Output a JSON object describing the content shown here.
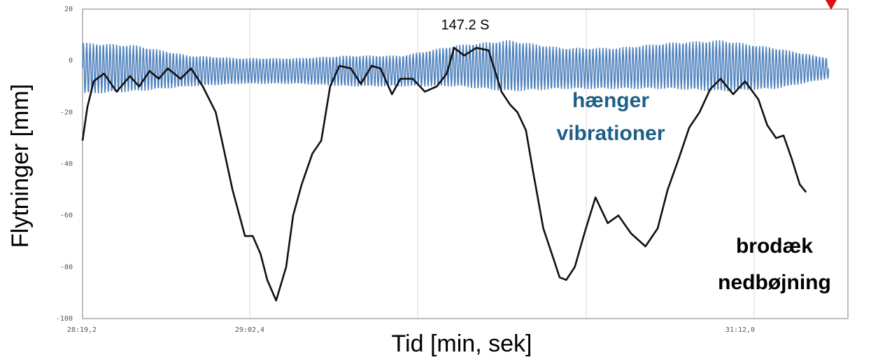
{
  "chart_data": {
    "type": "line",
    "title": "",
    "xlabel": "Tid [min, sek]",
    "ylabel": "Flytninger [mm]",
    "x_tick_labels": [
      "28:19,2",
      "29:02,4",
      "31:12,0"
    ],
    "y_ticks": [
      20,
      0,
      -20,
      -40,
      -60,
      -80,
      -100
    ],
    "ylim": [
      -100,
      20
    ],
    "xlim_seconds": [
      1699.2,
      1906.0
    ],
    "grid": "vertical",
    "annotation": "147.2 S",
    "series": [
      {
        "name": "hænger vibrationer",
        "color": "#4f81bd",
        "label_color": "#1f5f86",
        "x": [
          1699.2,
          1713.6,
          1728.0,
          1742.4,
          1756.8,
          1771.2,
          1785.6,
          1800.0,
          1814.4,
          1828.8,
          1843.2,
          1857.6,
          1872.0,
          1886.4,
          1900.8
        ],
        "center": [
          -3,
          -3,
          -4,
          -4,
          -4,
          -4,
          -4,
          -2,
          -2,
          -3,
          -3,
          -2,
          -2,
          -3,
          -3
        ],
        "amplitude": [
          10,
          9,
          6,
          5,
          5,
          6,
          6,
          8,
          10,
          8,
          8,
          9,
          10,
          8,
          4
        ],
        "period_s": 0.9
      },
      {
        "name": "brodæk nedbøjning",
        "color": "#111111",
        "label_color": "#000000",
        "x": [
          1699.2,
          1700.5,
          1702.2,
          1705.0,
          1708.4,
          1712.0,
          1714.5,
          1717.3,
          1719.8,
          1722.2,
          1725.7,
          1728.5,
          1731.7,
          1735.2,
          1737.0,
          1739.7,
          1743.1,
          1745.2,
          1747.3,
          1749.1,
          1751.5,
          1754.2,
          1756.1,
          1758.4,
          1761.3,
          1763.7,
          1766.1,
          1768.6,
          1771.7,
          1774.4,
          1777.3,
          1779.7,
          1782.8,
          1785.1,
          1788.4,
          1791.7,
          1794.9,
          1797.6,
          1799.6,
          1802.3,
          1805.6,
          1808.9,
          1812.4,
          1814.7,
          1816.7,
          1819.0,
          1820.8,
          1823.7,
          1826.5,
          1828.1,
          1829.9,
          1832.2,
          1835.0,
          1837.8,
          1841.1,
          1844.0,
          1847.4,
          1851.3,
          1854.6,
          1857.3,
          1860.3,
          1863.1,
          1865.9,
          1868.8,
          1871.6,
          1875.0,
          1878.2,
          1881.8,
          1884.2,
          1886.6,
          1888.6,
          1890.8,
          1893.0,
          1894.7
        ],
        "y": [
          -31,
          -18,
          -8,
          -5,
          -12,
          -6,
          -10,
          -4,
          -7,
          -3,
          -7,
          -3,
          -10,
          -20,
          -32,
          -50,
          -68,
          -68,
          -75,
          -85,
          -93,
          -80,
          -60,
          -48,
          -36,
          -31,
          -10,
          -2,
          -3,
          -9,
          -2,
          -3,
          -13,
          -7,
          -7,
          -12,
          -10,
          -5,
          5,
          2,
          5,
          4,
          -12,
          -17,
          -20,
          -27,
          -42,
          -65,
          -77,
          -84,
          -85,
          -80,
          -66,
          -53,
          -63,
          -60,
          -67,
          -72,
          -65,
          -50,
          -38,
          -26,
          -20,
          -11,
          -7,
          -13,
          -8,
          -15,
          -25,
          -30,
          -29,
          -38,
          -48,
          -51
        ]
      }
    ]
  }
}
